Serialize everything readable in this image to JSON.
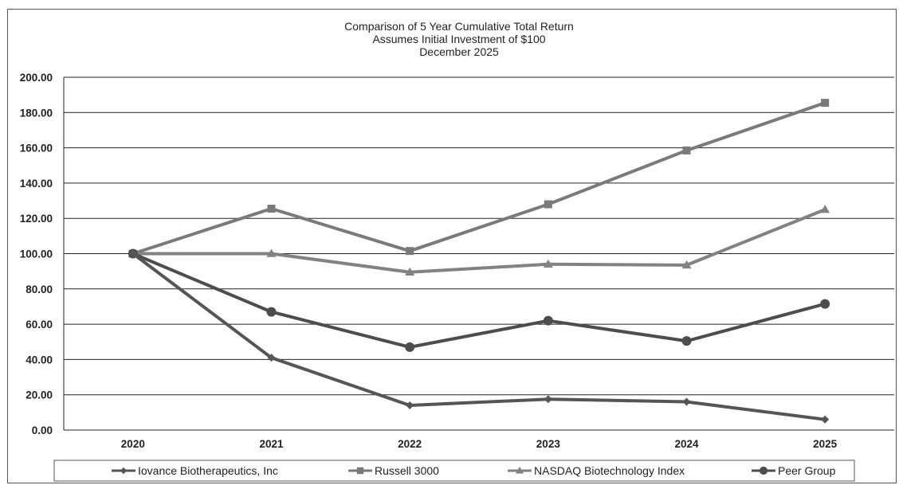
{
  "chart_data": {
    "type": "line",
    "title": "Comparison of 5 Year Cumulative Total Return",
    "subtitle": "Assumes Initial Investment of $100",
    "date_line": "December 2025",
    "categories": [
      "2020",
      "2021",
      "2022",
      "2023",
      "2024",
      "2025"
    ],
    "y_ticks": [
      "0.00",
      "20.00",
      "40.00",
      "60.00",
      "80.00",
      "100.00",
      "120.00",
      "140.00",
      "160.00",
      "180.00",
      "200.00"
    ],
    "ylim": [
      0,
      200
    ],
    "grid": true,
    "legend_position": "bottom",
    "series": [
      {
        "name": "Iovance Biotherapeutics, Inc",
        "marker": "diamond",
        "color": "#555555",
        "values": [
          100,
          41,
          14,
          17.5,
          16,
          6
        ]
      },
      {
        "name": "Russell 3000",
        "marker": "square",
        "color": "#7a7a7a",
        "values": [
          100,
          125.5,
          101.5,
          128,
          158.5,
          185.5
        ]
      },
      {
        "name": "NASDAQ Biotechnology Index",
        "marker": "triangle",
        "color": "#828282",
        "values": [
          100,
          100,
          89.5,
          94,
          93.5,
          125
        ]
      },
      {
        "name": "Peer Group",
        "marker": "circle",
        "color": "#4d4d4d",
        "values": [
          100,
          67,
          47,
          62,
          50.5,
          71.5
        ]
      }
    ]
  }
}
